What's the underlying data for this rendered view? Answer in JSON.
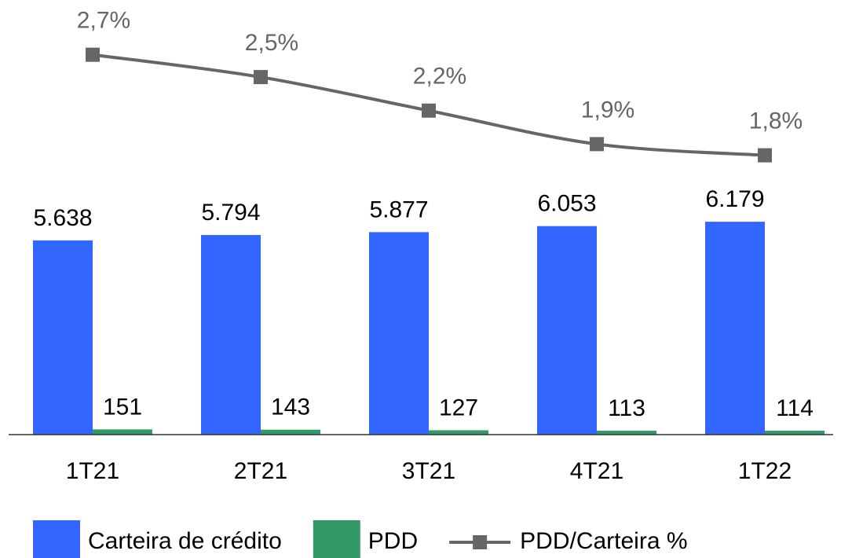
{
  "chart_data": {
    "type": "bar",
    "categories": [
      "1T21",
      "2T21",
      "3T21",
      "4T21",
      "1T22"
    ],
    "series": [
      {
        "name": "Carteira de crédito",
        "type": "bar",
        "axis": "y",
        "color": "#3366ff",
        "values": [
          5638,
          5794,
          5877,
          6053,
          6179
        ],
        "value_labels": [
          "5.638",
          "5.794",
          "5.877",
          "6.053",
          "6.179"
        ]
      },
      {
        "name": "PDD",
        "type": "bar",
        "axis": "y",
        "color": "#339966",
        "values": [
          151,
          143,
          127,
          113,
          114
        ]
      },
      {
        "name": "PDD/Carteira %",
        "type": "line",
        "axis": "y2",
        "color": "#666666",
        "values": [
          2.7,
          2.5,
          2.2,
          1.9,
          1.8
        ],
        "value_labels": [
          "2,7%",
          "2,5%",
          "2,2%",
          "1,9%",
          "1,8%"
        ]
      }
    ],
    "ylim": [
      0,
      12000
    ],
    "y2lim": [
      -0.7,
      3.0
    ],
    "legend": "bottom"
  }
}
